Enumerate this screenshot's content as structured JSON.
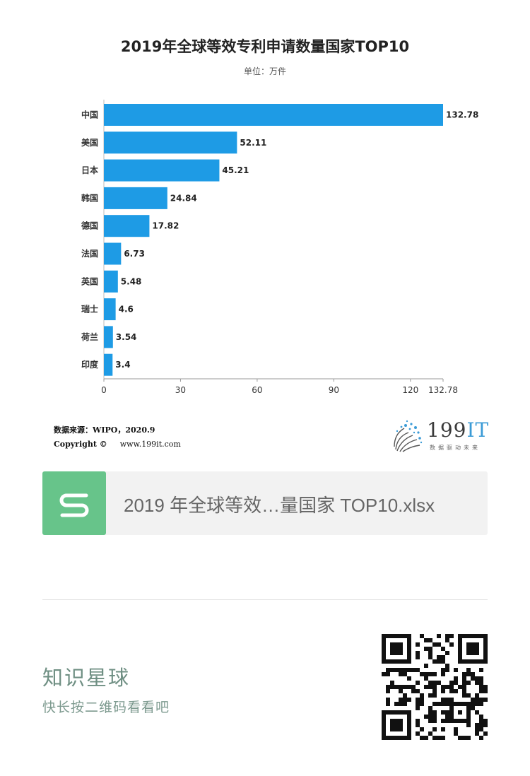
{
  "chart_data": {
    "type": "bar",
    "orientation": "horizontal",
    "title": "2019年全球等效专利申请数量国家TOP10",
    "subtitle": "单位：万件",
    "categories": [
      "中国",
      "美国",
      "日本",
      "韩国",
      "德国",
      "法国",
      "英国",
      "瑞士",
      "荷兰",
      "印度"
    ],
    "values": [
      132.78,
      52.11,
      45.21,
      24.84,
      17.82,
      6.73,
      5.48,
      4.6,
      3.54,
      3.4
    ],
    "value_labels": [
      "132.78",
      "52.11",
      "45.21",
      "24.84",
      "17.82",
      "6.73",
      "5.48",
      "4.6",
      "3.54",
      "3.4"
    ],
    "x_ticks": [
      0,
      30,
      60,
      90,
      120,
      132.78
    ],
    "x_tick_labels": [
      "0",
      "30",
      "60",
      "90",
      "120",
      "132.78"
    ],
    "xlim": [
      0,
      132.78
    ],
    "bar_color": "#1e9be5",
    "grid": false
  },
  "footer": {
    "source": "数据来源：WIPO，2020.9",
    "copyright_label": "Copyright ©",
    "copyright_url": "www.199it.com",
    "logo_num": "199",
    "logo_it": "IT",
    "logo_tagline": "数据驱动未来"
  },
  "file_card": {
    "icon": "spreadsheet-s-icon",
    "icon_color": "#67c48a",
    "name": "2019 年全球等效…量国家 TOP10.xlsx"
  },
  "promo": {
    "title": "知识星球",
    "subtitle": "快长按二维码看看吧",
    "qr_icon": "qr-code-icon"
  }
}
